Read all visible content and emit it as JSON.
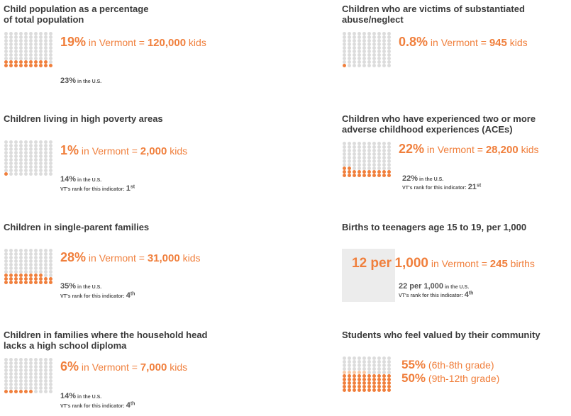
{
  "colors": {
    "accent": "#f07f3c",
    "accent_light": "#f8c9a6",
    "empty": "#dcdcdc",
    "box": "#ececec"
  },
  "panels": {
    "child_pop": {
      "title_l1": "Child population as a percentage",
      "title_l2": "of total population",
      "pct": "19%",
      "mid": " in Vermont = ",
      "num": "120,000",
      "unit": " kids",
      "us_pct": "23%",
      "us_label": " in the U.S.",
      "dots_filled": 19
    },
    "abuse": {
      "title_l1": "Children who are victims of substantiated",
      "title_l2": "abuse/neglect",
      "pct": "0.8%",
      "mid": " in Vermont = ",
      "num": "945",
      "unit": " kids",
      "dots_filled": 1
    },
    "poverty": {
      "title_l1": "Children living in high poverty areas",
      "pct": "1%",
      "mid": " in Vermont = ",
      "num": "2,000",
      "unit": " kids",
      "us_pct": "14%",
      "us_label": " in the U.S.",
      "rank_label": "VT's rank for this indicator: ",
      "rank": "1",
      "rank_sup": "st",
      "dots_filled": 1
    },
    "aces": {
      "title_l1": "Children who have experienced two or more",
      "title_l2": "adverse childhood experiences (ACEs)",
      "pct": "22%",
      "mid": " in Vermont = ",
      "num": "28,200",
      "unit": " kids",
      "us_pct": "22%",
      "us_label": " in the U.S.",
      "rank_label": "VT's rank for this indicator: ",
      "rank": "21",
      "rank_sup": "st",
      "dots_filled": 22
    },
    "single_parent": {
      "title_l1": "Children in single-parent families",
      "pct": "28%",
      "mid": " in Vermont = ",
      "num": "31,000",
      "unit": " kids",
      "us_pct": "35%",
      "us_label": " in the U.S.",
      "rank_label": "VT's rank for this indicator: ",
      "rank": "4",
      "rank_sup": "th",
      "dots_filled": 28
    },
    "teen_births": {
      "title_l1": "Births to teenagers age 15 to 19, per 1,000",
      "big": "12 per",
      "big2": "1,000",
      "mid": " in Vermont = ",
      "num": "245",
      "unit": " births",
      "us_pct": "22 per 1,000",
      "us_label": " in the U.S.",
      "rank_label": "VT's rank for this indicator: ",
      "rank": "4",
      "rank_sup": "th"
    },
    "diploma": {
      "title_l1": "Children in families where the household head",
      "title_l2": "lacks a high school diploma",
      "pct": "6%",
      "mid": " in Vermont = ",
      "num": "7,000",
      "unit": " kids",
      "us_pct": "14%",
      "us_label": " in the U.S.",
      "rank_label": "VT's rank for this indicator: ",
      "rank": "4",
      "rank_sup": "th",
      "dots_filled": 6
    },
    "valued": {
      "title_l1": "Students who feel valued by their community",
      "pct1": "55%",
      "label1": " (6th-8th grade)",
      "pct2": "50%",
      "label2": " (9th-12th grade)",
      "dots_filled_1": 55,
      "dots_filled_2": 50
    }
  }
}
